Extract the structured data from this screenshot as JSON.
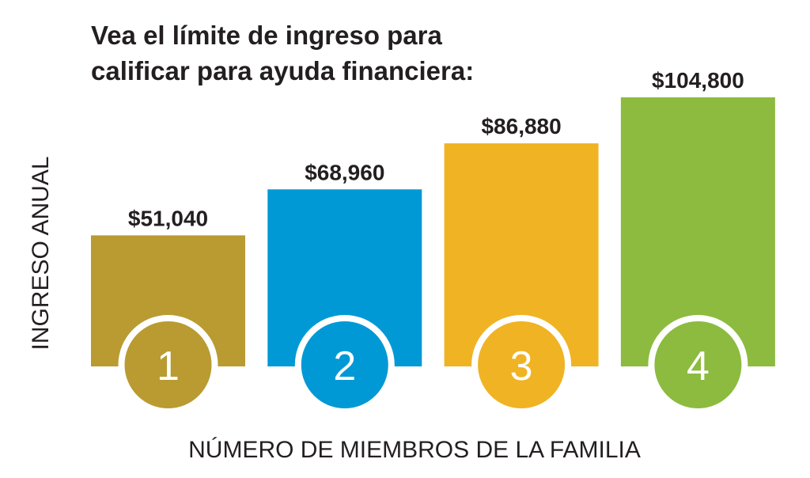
{
  "chart_data": {
    "type": "bar",
    "title": [
      "Vea el límite de ingreso para",
      "calificar para ayuda financiera:"
    ],
    "y_label": "INGRESO ANUAL",
    "x_label": "NÚMERO DE MIEMBROS DE LA FAMILIA",
    "categories": [
      "1",
      "2",
      "3",
      "4"
    ],
    "values": [
      51040,
      68960,
      86880,
      104800
    ],
    "value_labels": [
      "$51,040",
      "$68,960",
      "$86,880",
      "$104,800"
    ],
    "colors": [
      "#b99b32",
      "#0099d6",
      "#f0b323",
      "#8cbb3f"
    ]
  }
}
